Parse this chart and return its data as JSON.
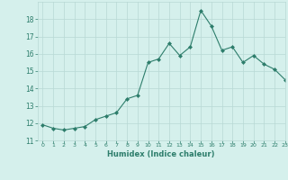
{
  "x": [
    0,
    1,
    2,
    3,
    4,
    5,
    6,
    7,
    8,
    9,
    10,
    11,
    12,
    13,
    14,
    15,
    16,
    17,
    18,
    19,
    20,
    21,
    22,
    23
  ],
  "y": [
    11.9,
    11.7,
    11.6,
    11.7,
    11.8,
    12.2,
    12.4,
    12.6,
    13.4,
    13.6,
    15.5,
    15.7,
    16.6,
    15.9,
    16.4,
    18.5,
    17.6,
    16.2,
    16.4,
    15.5,
    15.9,
    15.4,
    15.1,
    14.5
  ],
  "xlabel": "Humidex (Indice chaleur)",
  "ylim": [
    11,
    19
  ],
  "xlim": [
    -0.5,
    23
  ],
  "yticks": [
    11,
    12,
    13,
    14,
    15,
    16,
    17,
    18
  ],
  "xticks": [
    0,
    1,
    2,
    3,
    4,
    5,
    6,
    7,
    8,
    9,
    10,
    11,
    12,
    13,
    14,
    15,
    16,
    17,
    18,
    19,
    20,
    21,
    22,
    23
  ],
  "line_color": "#2d7d6b",
  "marker_color": "#2d7d6b",
  "bg_color": "#d5f0ec",
  "grid_color": "#b8d8d4",
  "label_color": "#2d7d6b",
  "tick_color": "#2d7d6b"
}
